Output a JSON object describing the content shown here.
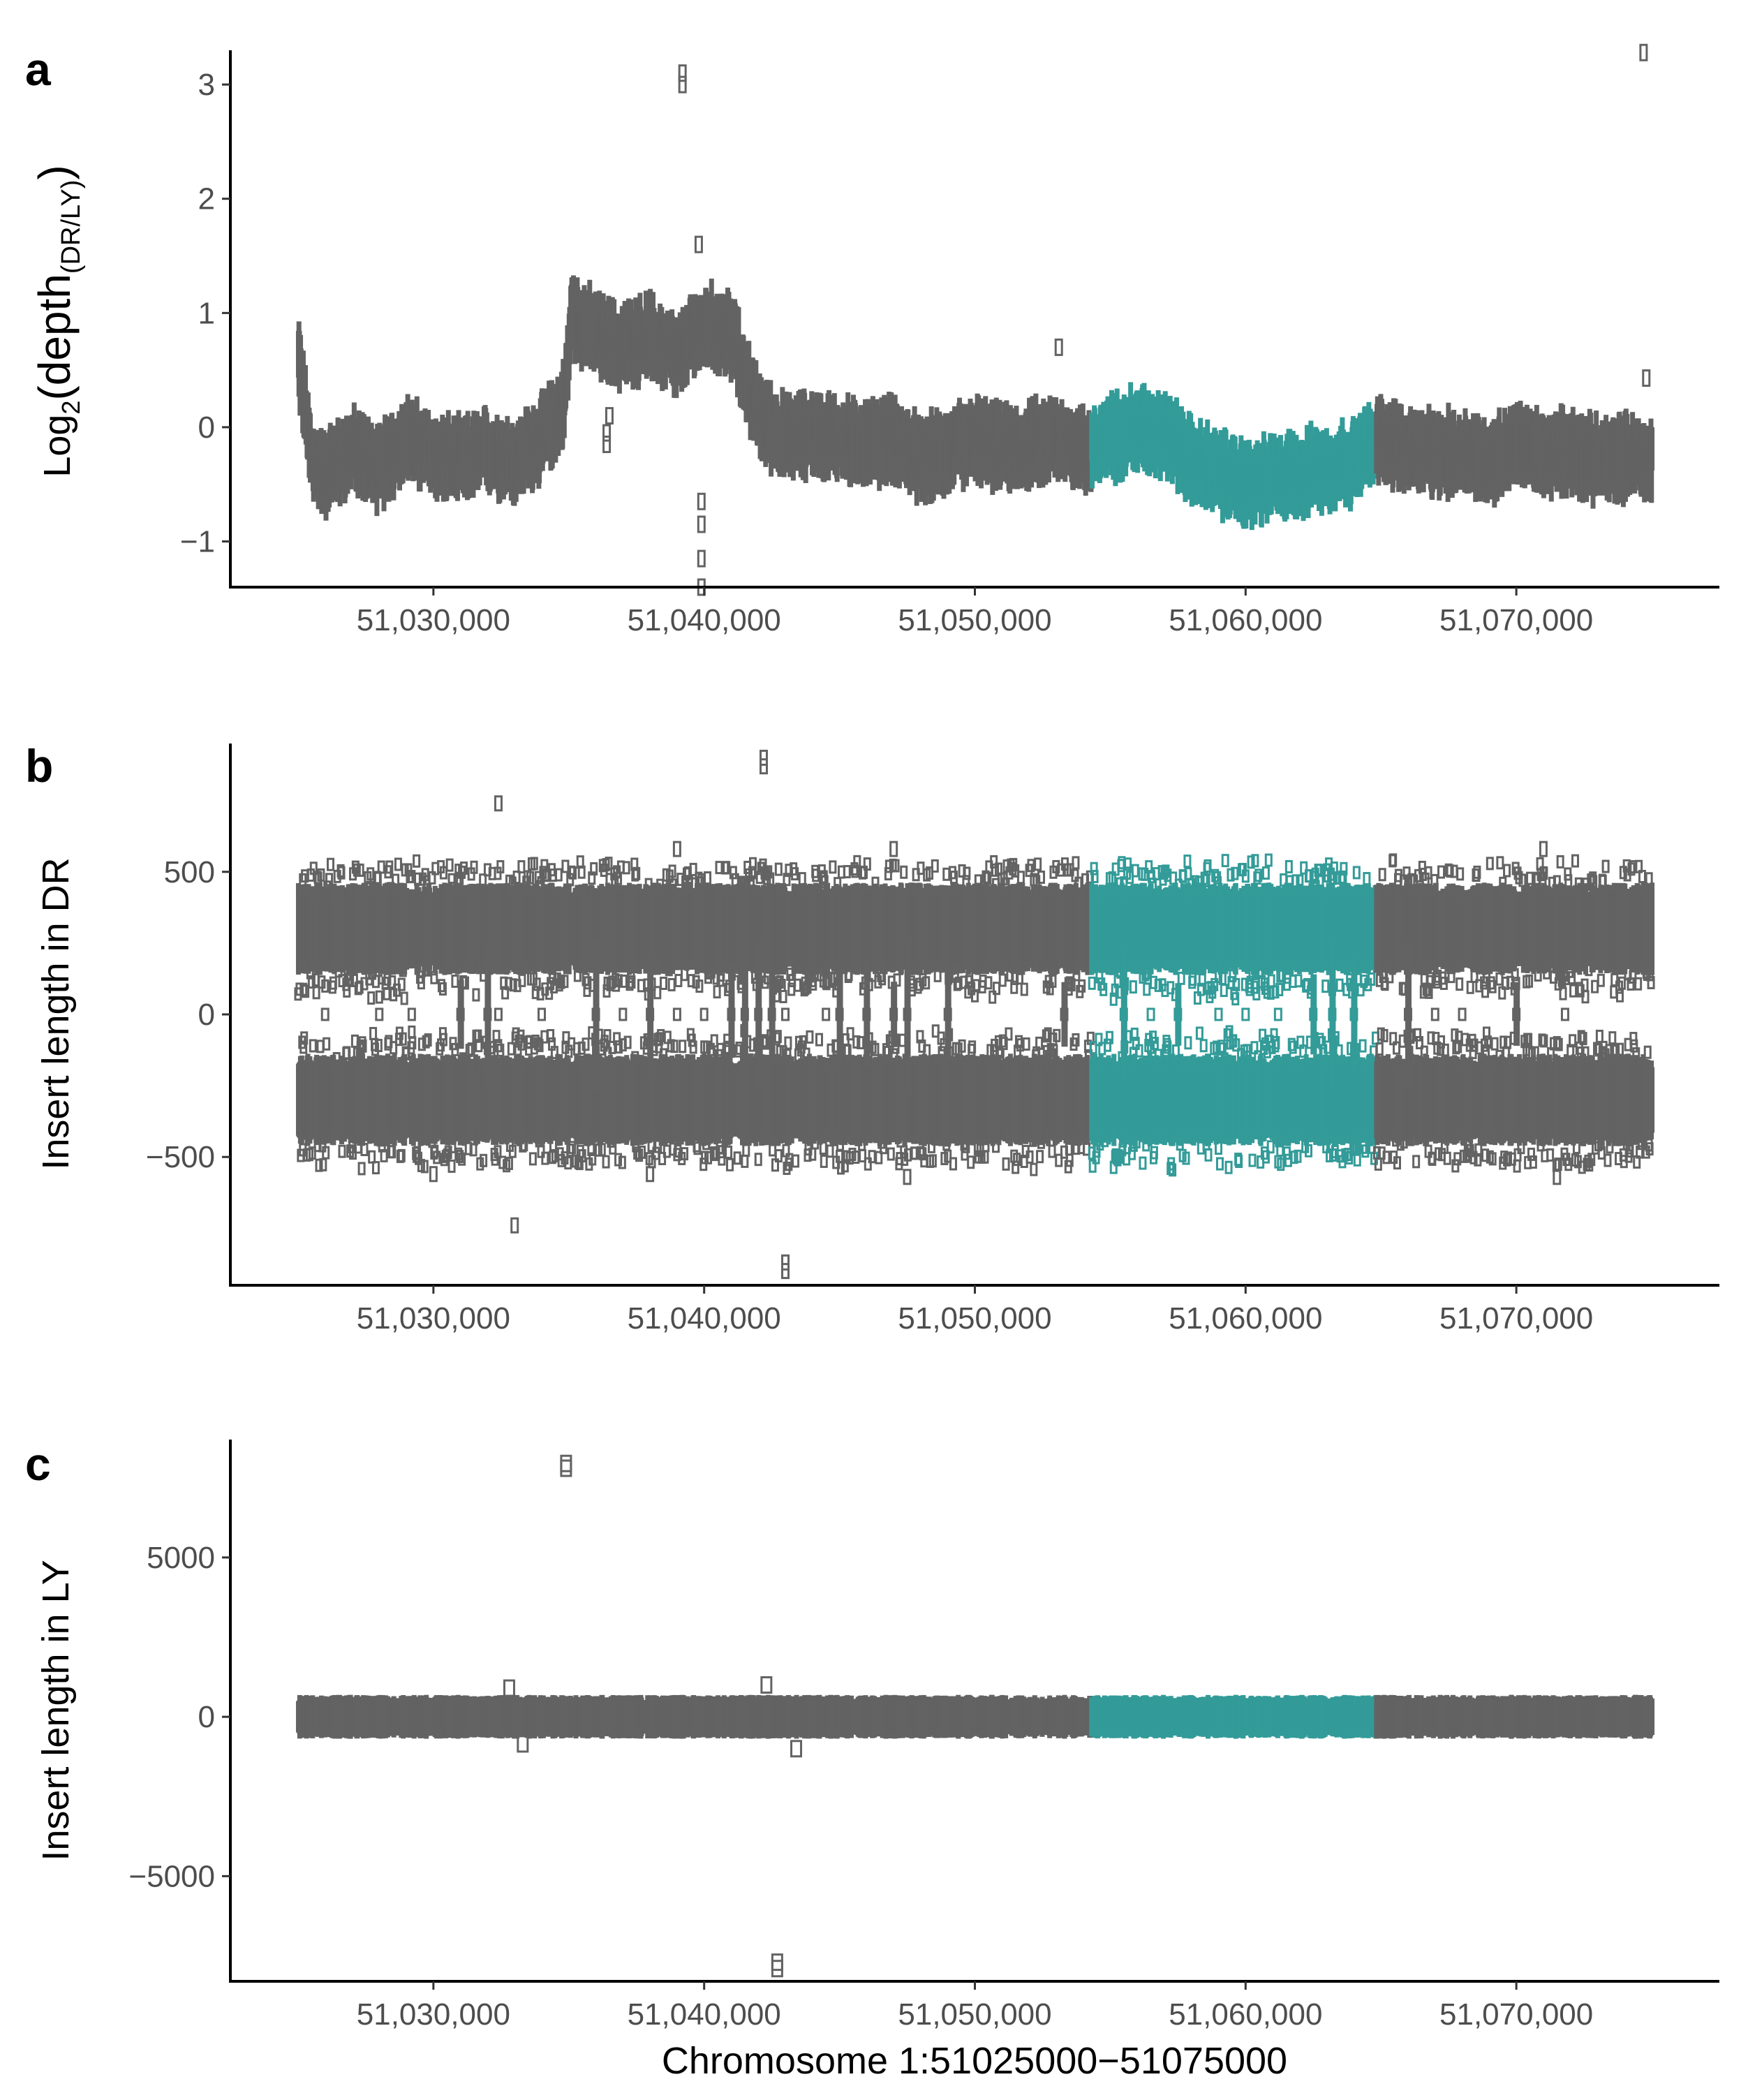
{
  "colors": {
    "gray": "#636363",
    "teal": "#339b98",
    "axis": "#000000",
    "tick_text": "#4d4d4d"
  },
  "x_axis": {
    "title": "Chromosome 1:51025000−51075000",
    "xlim": [
      51022500,
      51077500
    ],
    "ticks": [
      51030000,
      51040000,
      51050000,
      51060000,
      51070000
    ],
    "tick_labels": [
      "51,030,000",
      "51,040,000",
      "51,050,000",
      "51,060,000",
      "51,070,000"
    ]
  },
  "chart_data": [
    {
      "panel": "a",
      "type": "scatter",
      "ylabel_main": "Log",
      "ylabel_sub": "2",
      "ylabel_mid": "(depth",
      "ylabel_sub2": "(DR/LY)",
      "ylabel_end": ")",
      "ylim": [
        -1.4,
        3.3
      ],
      "yticks": [
        -1,
        0,
        1,
        2,
        3
      ],
      "ytick_labels": [
        "−1",
        "0",
        "1",
        "2",
        "3"
      ],
      "highlight": {
        "start": 51054300,
        "end": 51064800,
        "color": "teal"
      },
      "series_profile": [
        [
          51025000,
          0.6
        ],
        [
          51025500,
          -0.3
        ],
        [
          51026000,
          -0.4
        ],
        [
          51027000,
          -0.2
        ],
        [
          51028000,
          -0.35
        ],
        [
          51029000,
          -0.1
        ],
        [
          51030000,
          -0.25
        ],
        [
          51031000,
          -0.3
        ],
        [
          51032000,
          -0.2
        ],
        [
          51033000,
          -0.3
        ],
        [
          51034000,
          -0.1
        ],
        [
          51034800,
          0.2
        ],
        [
          51035100,
          1.0
        ],
        [
          51036000,
          0.8
        ],
        [
          51037000,
          0.7
        ],
        [
          51038000,
          0.8
        ],
        [
          51039000,
          0.6
        ],
        [
          51040000,
          0.9
        ],
        [
          51041000,
          0.8
        ],
        [
          51042000,
          0.1
        ],
        [
          51043000,
          -0.1
        ],
        [
          51044000,
          -0.05
        ],
        [
          51045000,
          -0.1
        ],
        [
          51046000,
          -0.15
        ],
        [
          51047000,
          -0.1
        ],
        [
          51048000,
          -0.3
        ],
        [
          51049000,
          -0.2
        ],
        [
          51050000,
          -0.1
        ],
        [
          51051000,
          -0.2
        ],
        [
          51052000,
          -0.15
        ],
        [
          51053000,
          -0.1
        ],
        [
          51054000,
          -0.2
        ],
        [
          51055000,
          -0.1
        ],
        [
          51056000,
          0.0
        ],
        [
          51057000,
          -0.05
        ],
        [
          51058000,
          -0.3
        ],
        [
          51059000,
          -0.4
        ],
        [
          51060000,
          -0.5
        ],
        [
          51061000,
          -0.45
        ],
        [
          51062000,
          -0.4
        ],
        [
          51063000,
          -0.35
        ],
        [
          51064000,
          -0.3
        ],
        [
          51065000,
          -0.1
        ],
        [
          51066000,
          -0.2
        ],
        [
          51067000,
          -0.25
        ],
        [
          51068000,
          -0.2
        ],
        [
          51069000,
          -0.3
        ],
        [
          51070000,
          -0.15
        ],
        [
          51071000,
          -0.25
        ],
        [
          51072000,
          -0.2
        ],
        [
          51073000,
          -0.3
        ],
        [
          51074000,
          -0.25
        ],
        [
          51075000,
          -0.3
        ]
      ],
      "band_halfwidth": 0.3,
      "outliers": [
        [
          51039200,
          3.1
        ],
        [
          51039200,
          3.0
        ],
        [
          51074700,
          3.28
        ],
        [
          51074800,
          0.43
        ],
        [
          51053100,
          0.7
        ],
        [
          51039800,
          1.6
        ],
        [
          51039900,
          -0.65
        ],
        [
          51039900,
          -0.85
        ],
        [
          51039900,
          -1.15
        ],
        [
          51039900,
          -1.4
        ],
        [
          51036400,
          -0.05
        ],
        [
          51036400,
          -0.15
        ],
        [
          51036500,
          0.1
        ]
      ]
    },
    {
      "panel": "b",
      "type": "scatter",
      "ylabel": "Insert length in DR",
      "ylim": [
        -950,
        950
      ],
      "yticks": [
        -500,
        0,
        500
      ],
      "ytick_labels": [
        "−500",
        "0",
        "500"
      ],
      "highlight": {
        "start": 51054300,
        "end": 51064800,
        "color": "teal"
      },
      "upper_band": {
        "center": 300,
        "halfwidth": 130
      },
      "lower_band": {
        "center": -300,
        "halfwidth": 130
      },
      "zero_cluster_positions": [
        51026000,
        51028000,
        51029200,
        51031000,
        51032000,
        51032400,
        51034000,
        51036000,
        51037000,
        51038000,
        51039000,
        51040000,
        51041000,
        51041500,
        51042000,
        51042500,
        51043000,
        51044500,
        51045000,
        51046000,
        51047000,
        51047500,
        51049000,
        51053300,
        51055500,
        51056500,
        51057500,
        51059000,
        51060000,
        51061200,
        51062500,
        51063200,
        51064000,
        51066000,
        51067000,
        51068000,
        51070000,
        51071800
      ],
      "outliers": [
        [
          51032400,
          740
        ],
        [
          51042200,
          870
        ],
        [
          51042200,
          900
        ],
        [
          51033000,
          -740
        ],
        [
          51043000,
          -870
        ],
        [
          51043000,
          -900
        ],
        [
          51047000,
          580
        ],
        [
          51039000,
          580
        ],
        [
          51071000,
          580
        ],
        [
          51038000,
          -560
        ],
        [
          51047500,
          -570
        ],
        [
          51071500,
          -570
        ],
        [
          51030000,
          -560
        ]
      ]
    },
    {
      "panel": "c",
      "type": "scatter",
      "ylabel": "Insert length in LY",
      "ylim": [
        -8300,
        8700
      ],
      "yticks": [
        -5000,
        0,
        5000
      ],
      "ytick_labels": [
        "−5000",
        "0",
        "5000"
      ],
      "highlight": {
        "start": 51054300,
        "end": 51064800,
        "color": "teal"
      },
      "main_band": {
        "center": 0,
        "halfwidth": 600
      },
      "outliers": [
        [
          51034900,
          7950
        ],
        [
          51034900,
          7800
        ],
        [
          51042700,
          -7700
        ],
        [
          51042700,
          -7900
        ],
        [
          51042300,
          1000
        ],
        [
          51032800,
          900
        ],
        [
          51043400,
          -1000
        ],
        [
          51033300,
          -850
        ]
      ]
    }
  ]
}
